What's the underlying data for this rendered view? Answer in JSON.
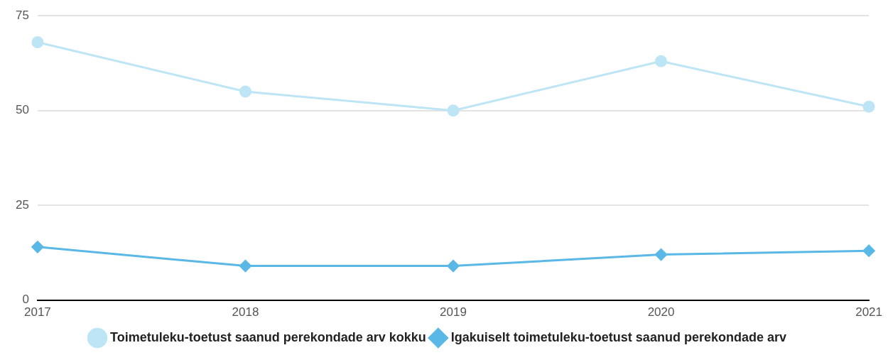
{
  "chart_data": {
    "type": "line",
    "categories": [
      "2017",
      "2018",
      "2019",
      "2020",
      "2021"
    ],
    "series": [
      {
        "name": "Toimetuleku-toetust saanud perekondade arv kokku",
        "color": "#bde5f5",
        "marker": "circle",
        "values": [
          68,
          55,
          50,
          63,
          51
        ]
      },
      {
        "name": "Igakuiselt toimetuleku-toetust saanud perekondade arv",
        "color": "#5ab8e6",
        "marker": "diamond",
        "values": [
          14,
          9,
          9,
          12,
          13
        ]
      }
    ],
    "ylim": [
      0,
      75
    ],
    "yticks": [
      0,
      25,
      50,
      75
    ],
    "grid": "y",
    "legend": "bottom",
    "line_style": "solid"
  }
}
